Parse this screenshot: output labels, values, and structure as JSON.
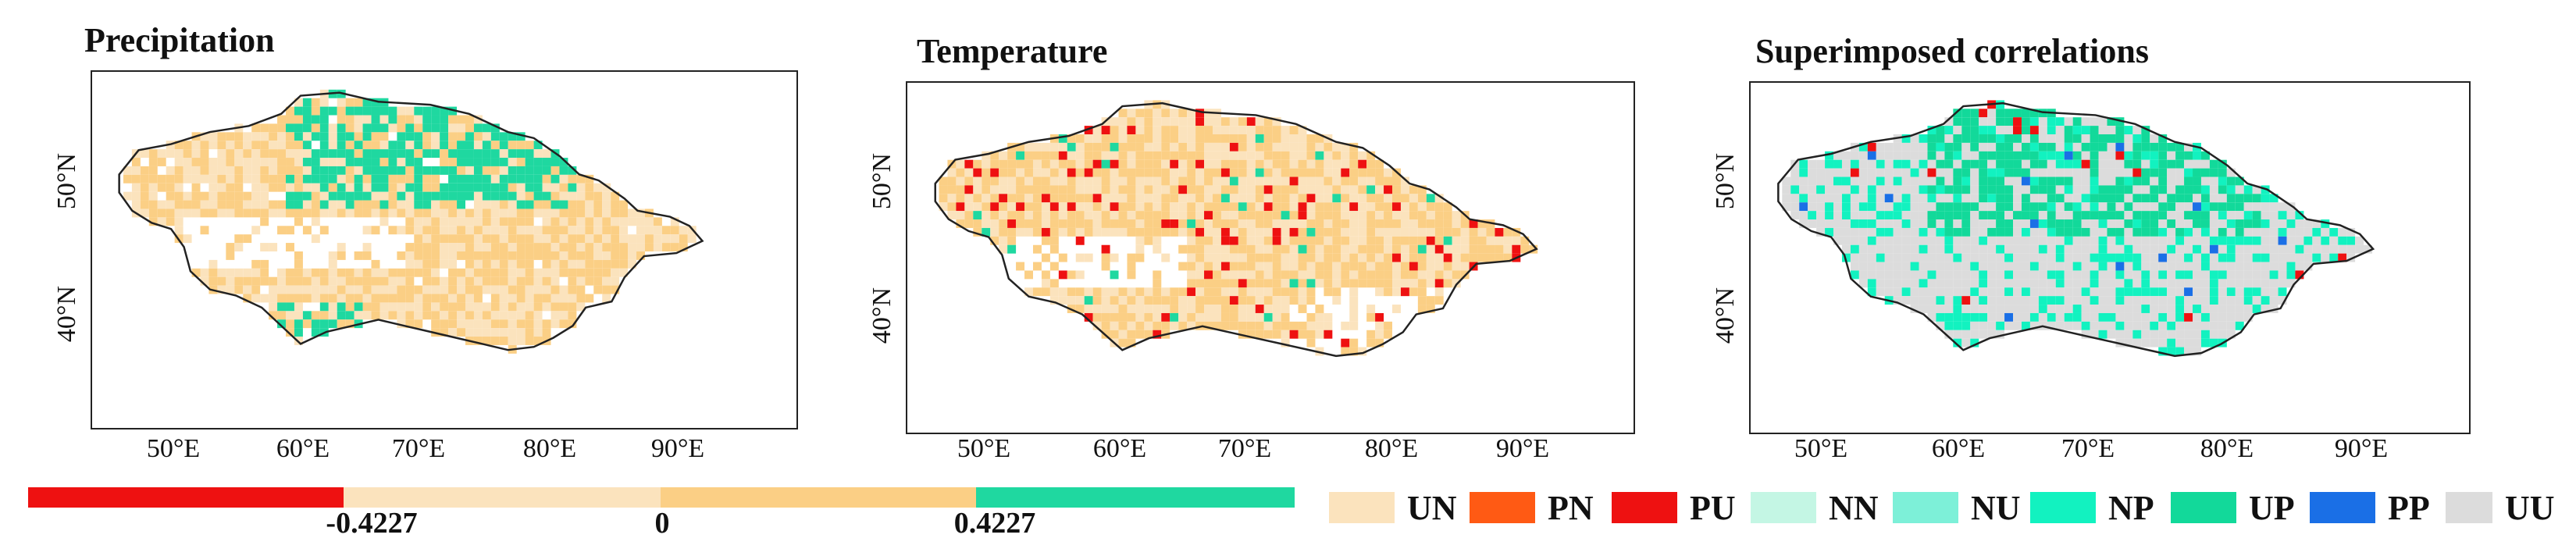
{
  "panels": [
    {
      "title": "Precipitation",
      "key": "precip",
      "x_ticks": [
        "50°E",
        "60°E",
        "70°E",
        "80°E",
        "90°E"
      ],
      "y_ticks": [
        "50°N",
        "40°N"
      ]
    },
    {
      "title": "Temperature",
      "key": "temp",
      "x_ticks": [
        "50°E",
        "60°E",
        "70°E",
        "80°E",
        "90°E"
      ],
      "y_ticks": [
        "50°N",
        "40°N"
      ]
    },
    {
      "title": "Superimposed correlations",
      "key": "super",
      "x_ticks": [
        "50°E",
        "60°E",
        "70°E",
        "80°E",
        "90°E"
      ],
      "y_ticks": [
        "50°N",
        "40°N"
      ]
    }
  ],
  "colorbar": {
    "segments": [
      {
        "color": "#ee1111"
      },
      {
        "color": "#fbe3bd"
      },
      {
        "color": "#fbcf85"
      },
      {
        "color": "#1fd8a0"
      }
    ],
    "labels": [
      "-0.4227",
      "0",
      "0.4227"
    ]
  },
  "legend": [
    {
      "label": "UN",
      "color": "#fbe3bd"
    },
    {
      "label": "PN",
      "color": "#ff5a14"
    },
    {
      "label": "PU",
      "color": "#ee1111"
    },
    {
      "label": "NN",
      "color": "#c4f6e4"
    },
    {
      "label": "NU",
      "color": "#7df0d8"
    },
    {
      "label": "NP",
      "color": "#12f2c0"
    },
    {
      "label": "UP",
      "color": "#12d99a"
    },
    {
      "label": "PP",
      "color": "#1a6fe6"
    },
    {
      "label": "UU",
      "color": "#dcdcdc"
    }
  ]
}
